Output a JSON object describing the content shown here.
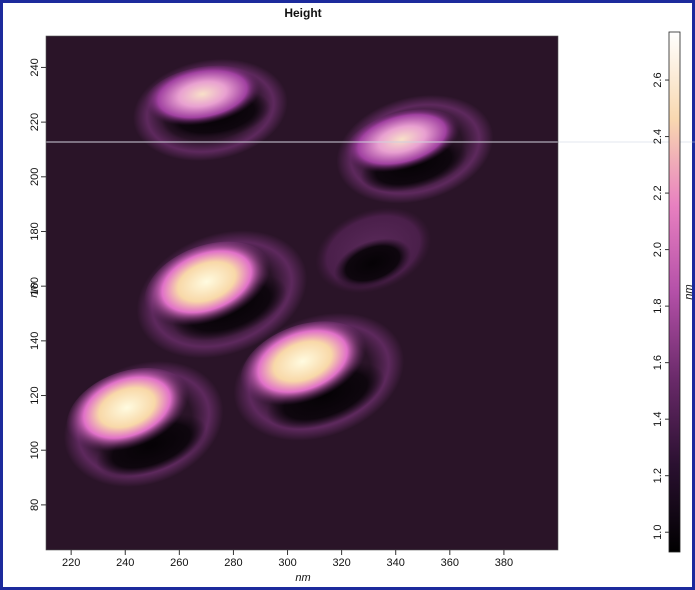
{
  "chart_data": {
    "type": "heatmap",
    "title": "Height",
    "xlabel": "nm",
    "ylabel": "nm",
    "colorbar_label": "nm",
    "xlim": [
      210.7,
      400
    ],
    "xticks": [
      220,
      240,
      260,
      280,
      300,
      320,
      340,
      360,
      380
    ],
    "ylim": [
      63.5,
      251.5
    ],
    "yticks": [
      80,
      100,
      120,
      140,
      160,
      180,
      200,
      220,
      240
    ],
    "clim": [
      0.93,
      2.77
    ],
    "cticks": [
      {
        "value": 1.0,
        "label": "1.0"
      },
      1.2,
      1.4,
      1.6,
      1.8,
      {
        "value": 2.0,
        "label": "2.0"
      },
      2.2,
      2.4,
      2.6
    ],
    "colormap": [
      "#000000",
      "#2a1030",
      "#6a2a6a",
      "#b450a8",
      "#e880c0",
      "#f8d8b0",
      "#ffffff"
    ]
  }
}
